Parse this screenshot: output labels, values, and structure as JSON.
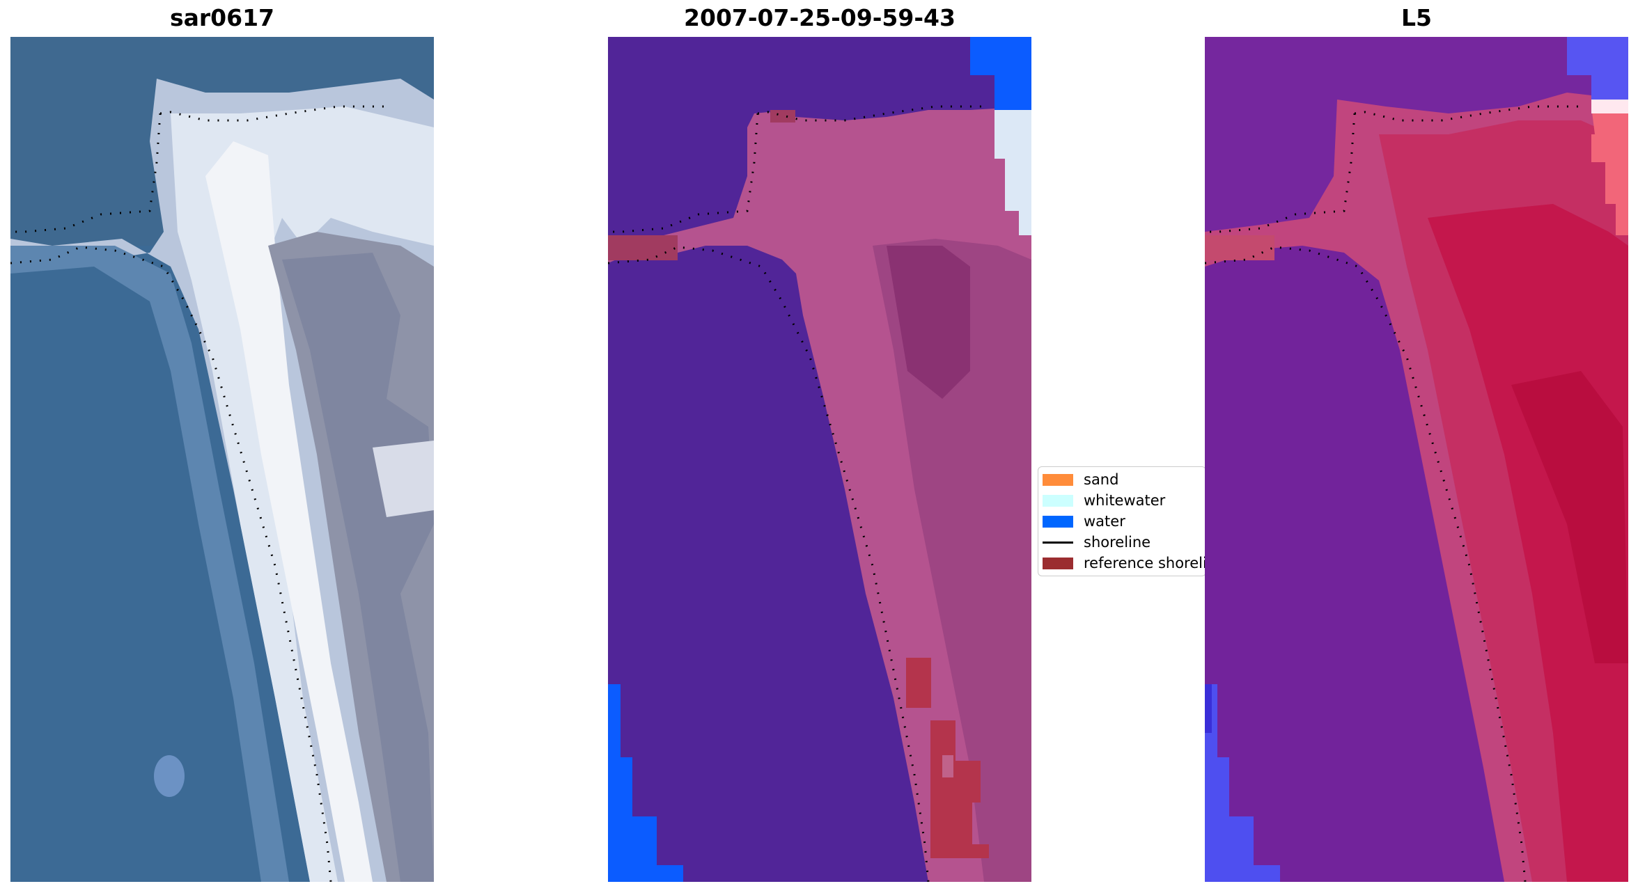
{
  "panels": [
    {
      "title": "sar0617"
    },
    {
      "title": "2007-07-25-09-59-43"
    },
    {
      "title": "L5"
    }
  ],
  "legend": {
    "items": [
      {
        "label": "sand",
        "type": "patch",
        "color": "#ff8c3a"
      },
      {
        "label": "whitewater",
        "type": "patch",
        "color": "#ccffff"
      },
      {
        "label": "water",
        "type": "patch",
        "color": "#0066ff"
      },
      {
        "label": "shoreline",
        "type": "line",
        "color": "#000000"
      },
      {
        "label": "reference shoreli",
        "type": "patch",
        "color": "#9b2d30"
      }
    ]
  }
}
